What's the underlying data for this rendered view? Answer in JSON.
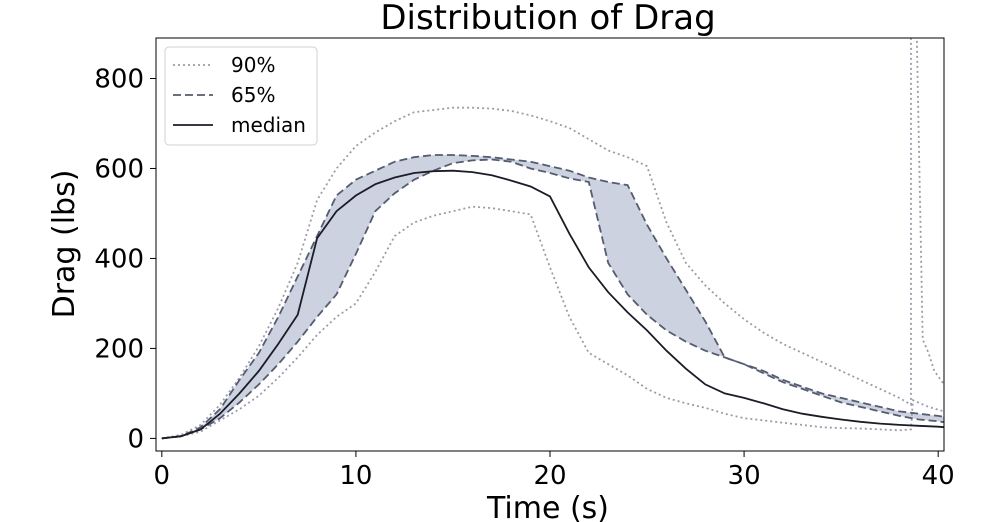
{
  "chart_data": {
    "type": "line",
    "title": "Distribution of Drag",
    "xlabel": "Time (s)",
    "ylabel": "Drag (lbs)",
    "xlim": [
      -0.3,
      40.3
    ],
    "ylim": [
      -28,
      890
    ],
    "xticks": [
      0,
      10,
      20,
      30,
      40
    ],
    "yticks": [
      0,
      200,
      400,
      600,
      800
    ],
    "grid": false,
    "legend_position": "upper-left",
    "colors": {
      "band": "#ccd2e0",
      "line_65": "#555b70",
      "line_90": "#9e9aaa",
      "median": "#1a1d26"
    },
    "series": [
      {
        "name": "90%",
        "style": "dotted",
        "upper": [
          [
            0,
            0
          ],
          [
            1,
            8
          ],
          [
            2,
            30
          ],
          [
            3,
            75
          ],
          [
            4,
            135
          ],
          [
            5,
            205
          ],
          [
            6,
            290
          ],
          [
            7,
            390
          ],
          [
            8,
            530
          ],
          [
            9,
            600
          ],
          [
            10,
            650
          ],
          [
            11,
            680
          ],
          [
            12,
            705
          ],
          [
            13,
            725
          ],
          [
            14,
            730
          ],
          [
            15,
            735
          ],
          [
            16,
            735
          ],
          [
            17,
            733
          ],
          [
            18,
            728
          ],
          [
            19,
            718
          ],
          [
            20,
            705
          ],
          [
            21,
            690
          ],
          [
            22,
            665
          ],
          [
            23,
            640
          ],
          [
            24,
            625
          ],
          [
            25,
            605
          ],
          [
            26,
            480
          ],
          [
            27,
            390
          ],
          [
            28,
            340
          ],
          [
            29,
            300
          ],
          [
            30,
            265
          ],
          [
            31,
            235
          ],
          [
            32,
            210
          ],
          [
            33,
            190
          ],
          [
            34,
            170
          ],
          [
            35,
            150
          ],
          [
            36,
            130
          ],
          [
            37,
            110
          ],
          [
            38,
            90
          ],
          [
            38.6,
            75
          ],
          [
            38.6,
            895
          ],
          [
            38.9,
            895
          ],
          [
            39.2,
            220
          ],
          [
            39.5,
            190
          ],
          [
            39.8,
            150
          ],
          [
            40.3,
            120
          ]
        ],
        "lower": [
          [
            0,
            0
          ],
          [
            1,
            5
          ],
          [
            2,
            15
          ],
          [
            3,
            40
          ],
          [
            4,
            65
          ],
          [
            5,
            95
          ],
          [
            6,
            135
          ],
          [
            7,
            180
          ],
          [
            8,
            230
          ],
          [
            9,
            270
          ],
          [
            10,
            300
          ],
          [
            11,
            370
          ],
          [
            12,
            450
          ],
          [
            13,
            480
          ],
          [
            14,
            495
          ],
          [
            15,
            505
          ],
          [
            16,
            515
          ],
          [
            17,
            512
          ],
          [
            18,
            505
          ],
          [
            19,
            498
          ],
          [
            20,
            380
          ],
          [
            21,
            270
          ],
          [
            22,
            190
          ],
          [
            23,
            165
          ],
          [
            24,
            140
          ],
          [
            25,
            110
          ],
          [
            26,
            90
          ],
          [
            27,
            78
          ],
          [
            28,
            68
          ],
          [
            29,
            55
          ],
          [
            30,
            45
          ],
          [
            31,
            40
          ],
          [
            32,
            35
          ],
          [
            33,
            30
          ],
          [
            34,
            25
          ],
          [
            35,
            23
          ],
          [
            36,
            22
          ],
          [
            37,
            20
          ],
          [
            38,
            18
          ],
          [
            38.6,
            20
          ],
          [
            38.7,
            85
          ],
          [
            39.5,
            70
          ],
          [
            40.3,
            60
          ]
        ]
      },
      {
        "name": "65%",
        "style": "dashed",
        "upper": [
          [
            0,
            0
          ],
          [
            1,
            5
          ],
          [
            2,
            25
          ],
          [
            3,
            65
          ],
          [
            4,
            130
          ],
          [
            5,
            190
          ],
          [
            6,
            270
          ],
          [
            7,
            360
          ],
          [
            8,
            450
          ],
          [
            9,
            540
          ],
          [
            10,
            575
          ],
          [
            11,
            595
          ],
          [
            12,
            615
          ],
          [
            13,
            625
          ],
          [
            14,
            630
          ],
          [
            15,
            630
          ],
          [
            16,
            628
          ],
          [
            17,
            625
          ],
          [
            18,
            620
          ],
          [
            19,
            615
          ],
          [
            20,
            605
          ],
          [
            21,
            595
          ],
          [
            22,
            580
          ],
          [
            23,
            570
          ],
          [
            24,
            563
          ],
          [
            25,
            475
          ],
          [
            26,
            400
          ],
          [
            27,
            330
          ],
          [
            28,
            260
          ],
          [
            29,
            180
          ],
          [
            30,
            165
          ],
          [
            31,
            150
          ],
          [
            32,
            130
          ],
          [
            33,
            115
          ],
          [
            34,
            100
          ],
          [
            35,
            90
          ],
          [
            36,
            80
          ],
          [
            37,
            70
          ],
          [
            38,
            60
          ],
          [
            39,
            55
          ],
          [
            40,
            50
          ],
          [
            40.3,
            48
          ]
        ],
        "lower": [
          [
            0,
            0
          ],
          [
            1,
            5
          ],
          [
            2,
            20
          ],
          [
            3,
            45
          ],
          [
            4,
            80
          ],
          [
            5,
            120
          ],
          [
            6,
            165
          ],
          [
            7,
            215
          ],
          [
            8,
            270
          ],
          [
            9,
            320
          ],
          [
            10,
            410
          ],
          [
            11,
            505
          ],
          [
            12,
            545
          ],
          [
            13,
            575
          ],
          [
            14,
            595
          ],
          [
            15,
            612
          ],
          [
            16,
            618
          ],
          [
            17,
            620
          ],
          [
            18,
            615
          ],
          [
            19,
            600
          ],
          [
            20,
            590
          ],
          [
            21,
            578
          ],
          [
            22,
            570
          ],
          [
            23,
            390
          ],
          [
            24,
            320
          ],
          [
            25,
            275
          ],
          [
            26,
            240
          ],
          [
            27,
            215
          ],
          [
            28,
            195
          ],
          [
            29,
            180
          ],
          [
            30,
            165
          ],
          [
            31,
            145
          ],
          [
            32,
            125
          ],
          [
            33,
            110
          ],
          [
            34,
            95
          ],
          [
            35,
            80
          ],
          [
            36,
            70
          ],
          [
            37,
            60
          ],
          [
            38,
            50
          ],
          [
            39,
            42
          ],
          [
            40,
            38
          ],
          [
            40.3,
            36
          ]
        ]
      },
      {
        "name": "median",
        "style": "solid",
        "points": [
          [
            0,
            0
          ],
          [
            1,
            5
          ],
          [
            2,
            20
          ],
          [
            3,
            55
          ],
          [
            4,
            100
          ],
          [
            5,
            150
          ],
          [
            6,
            210
          ],
          [
            7,
            275
          ],
          [
            8,
            445
          ],
          [
            9,
            505
          ],
          [
            10,
            540
          ],
          [
            11,
            565
          ],
          [
            12,
            580
          ],
          [
            13,
            590
          ],
          [
            14,
            594
          ],
          [
            15,
            595
          ],
          [
            16,
            592
          ],
          [
            17,
            585
          ],
          [
            18,
            573
          ],
          [
            19,
            560
          ],
          [
            20,
            538
          ],
          [
            21,
            455
          ],
          [
            22,
            380
          ],
          [
            23,
            325
          ],
          [
            24,
            280
          ],
          [
            25,
            240
          ],
          [
            26,
            195
          ],
          [
            27,
            155
          ],
          [
            28,
            120
          ],
          [
            29,
            100
          ],
          [
            30,
            90
          ],
          [
            31,
            78
          ],
          [
            32,
            65
          ],
          [
            33,
            55
          ],
          [
            34,
            48
          ],
          [
            35,
            42
          ],
          [
            36,
            37
          ],
          [
            37,
            33
          ],
          [
            38,
            30
          ],
          [
            39,
            28
          ],
          [
            40,
            26
          ],
          [
            40.3,
            25
          ]
        ]
      }
    ]
  }
}
